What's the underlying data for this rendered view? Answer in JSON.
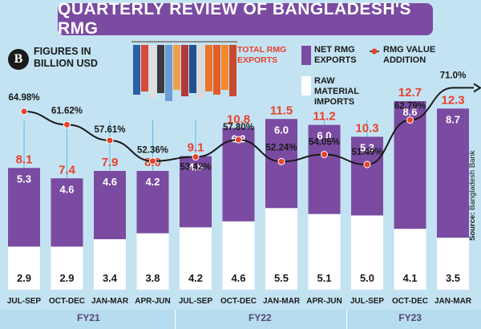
{
  "header": {
    "title": "QUARTERLY REVIEW OF BANGLADESH'S RMG",
    "logo_glyph": "B",
    "units_note": "FIGURES IN BILLION USD",
    "source_label": "Source:",
    "source_name": "Bangladesh Bank"
  },
  "legend": {
    "total_label": "TOTAL RMG EXPORTS",
    "net_label": "NET RMG EXPORTS",
    "value_addition_label": "RMG VALUE ADDITION",
    "raw_material_label": "RAW MATERIAL IMPORTS"
  },
  "colors": {
    "net": "#7b4ba2",
    "raw": "#ffffff",
    "total_text": "#e8412b",
    "line": "#1a1a1a",
    "dot": "#e8412b",
    "background": "#c3e3f3"
  },
  "chart_data": {
    "type": "bar",
    "categories": [
      "JUL-SEP",
      "OCT-DEC",
      "JAN-MAR",
      "APR-JUN",
      "JUL-SEP",
      "OCT-DEC",
      "JAN-MAR",
      "APR-JUN",
      "JUL-SEP",
      "OCT-DEC",
      "JAN-MAR"
    ],
    "series": [
      {
        "name": "RAW MATERIAL IMPORTS",
        "values": [
          2.9,
          2.9,
          3.4,
          3.8,
          4.2,
          4.6,
          5.5,
          5.1,
          5.0,
          4.1,
          3.5
        ]
      },
      {
        "name": "NET RMG EXPORTS",
        "values": [
          5.3,
          4.6,
          4.6,
          4.2,
          4.8,
          6.3,
          6.0,
          6.0,
          5.3,
          8.6,
          8.7
        ]
      },
      {
        "name": "TOTAL RMG EXPORTS",
        "values": [
          8.1,
          7.4,
          7.9,
          8.0,
          9.1,
          10.8,
          11.5,
          11.2,
          10.3,
          12.7,
          12.3
        ]
      }
    ],
    "line_series": {
      "name": "RMG VALUE ADDITION",
      "values": [
        64.98,
        61.62,
        57.61,
        52.36,
        53.42,
        57.8,
        52.24,
        54.05,
        51.49,
        62.79,
        71.0
      ],
      "labels": [
        "64.98%",
        "61.62%",
        "57.61%",
        "52.36%",
        "53.42%",
        "57.80%",
        "52.24%",
        "54.05%",
        "51.49%",
        "62.79%",
        "71.0%"
      ]
    },
    "bar_labels": {
      "total": [
        "8.1",
        "7.4",
        "7.9",
        "8.0",
        "9.1",
        "10.8",
        "11.5",
        "11.2",
        "10.3",
        "12.7",
        "12.3"
      ],
      "net": [
        "5.3",
        "4.6",
        "4.6",
        "4.2",
        "4.8",
        "6.3",
        "6.0",
        "6.0",
        "5.3",
        "8.6",
        "8.7"
      ],
      "raw": [
        "2.9",
        "2.9",
        "3.4",
        "3.8",
        "4.2",
        "4.6",
        "5.5",
        "5.1",
        "5.0",
        "4.1",
        "3.5"
      ]
    },
    "fiscal_years": [
      {
        "label": "FY21",
        "quarters": 4
      },
      {
        "label": "FY22",
        "quarters": 4
      },
      {
        "label": "FY23",
        "quarters": 3
      }
    ],
    "stacked": true,
    "grid": false,
    "legend_position": "top-right"
  }
}
